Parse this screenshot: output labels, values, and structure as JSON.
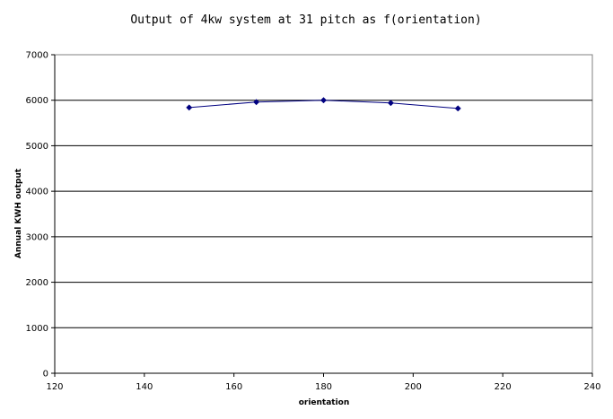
{
  "chart_data": {
    "type": "line",
    "title": "Output of 4kw system at 31 pitch as f(orientation)",
    "xlabel": "orientation",
    "ylabel": "Annual KWH output",
    "xlim": [
      120,
      240
    ],
    "ylim": [
      0,
      7000
    ],
    "x_ticks": [
      "120",
      "140",
      "160",
      "180",
      "200",
      "220",
      "240"
    ],
    "y_ticks": [
      "0",
      "1000",
      "2000",
      "3000",
      "4000",
      "5000",
      "6000",
      "7000"
    ],
    "grid": "horizontal major gridlines",
    "legend": "none",
    "series": [
      {
        "x": [
          150,
          165,
          180,
          195,
          210
        ],
        "values": [
          5840,
          5960,
          6000,
          5940,
          5820
        ],
        "color": "#000080",
        "marker": "diamond"
      }
    ]
  }
}
